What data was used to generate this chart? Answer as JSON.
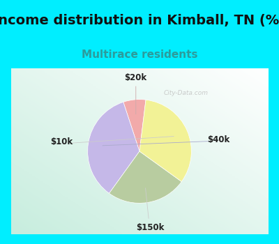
{
  "title": "Income distribution in Kimball, TN (%)",
  "subtitle": "Multirace residents",
  "labels": [
    "$20k",
    "$40k",
    "$150k",
    "$10k"
  ],
  "sizes": [
    7,
    35,
    25,
    33
  ],
  "colors": [
    "#f2aaaa",
    "#c5b8e8",
    "#b8cca0",
    "#f2f296"
  ],
  "bg_cyan": "#00eeff",
  "title_fontsize": 14,
  "subtitle_fontsize": 11,
  "subtitle_color": "#2b9c9c",
  "startangle": 83,
  "watermark": "City-Data.com",
  "border_width": 8,
  "label_font_size": 8.5,
  "label_color": "#222222"
}
